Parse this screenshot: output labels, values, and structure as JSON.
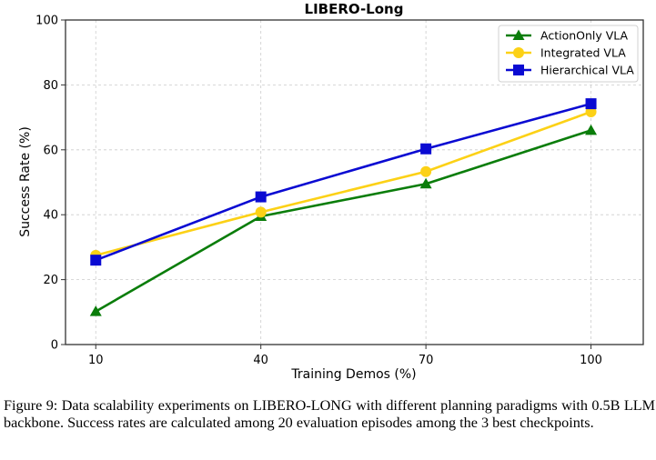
{
  "chart_data": {
    "type": "line",
    "title": "LIBERO-Long",
    "xlabel": "Training Demos (%)",
    "ylabel": "Success Rate (%)",
    "x": [
      10,
      40,
      70,
      100
    ],
    "x_tick_labels": [
      "10",
      "40",
      "70",
      "100"
    ],
    "y_ticks": [
      0,
      20,
      40,
      60,
      80,
      100
    ],
    "y_tick_labels": [
      "0",
      "20",
      "40",
      "60",
      "80",
      "100"
    ],
    "ylim": [
      0,
      100
    ],
    "xlim": [
      4.5,
      109.5
    ],
    "grid": true,
    "legend_position": "top-right",
    "series": [
      {
        "name": "ActionOnly VLA",
        "color": "#0a7d0a",
        "marker": "triangle",
        "values": [
          10.2,
          39.5,
          49.5,
          66.0
        ]
      },
      {
        "name": "Integrated VLA",
        "color": "#fcd116",
        "marker": "circle",
        "values": [
          27.5,
          40.8,
          53.3,
          71.7
        ]
      },
      {
        "name": "Hierarchical VLA",
        "color": "#0a0ad2",
        "marker": "square",
        "values": [
          26.0,
          45.5,
          60.3,
          74.2
        ]
      }
    ]
  },
  "caption": "Figure 9: Data scalability experiments on LIBERO-LONG with different planning paradigms with 0.5B LLM backbone. Success rates are calculated among 20 evaluation episodes among the 3 best checkpoints."
}
